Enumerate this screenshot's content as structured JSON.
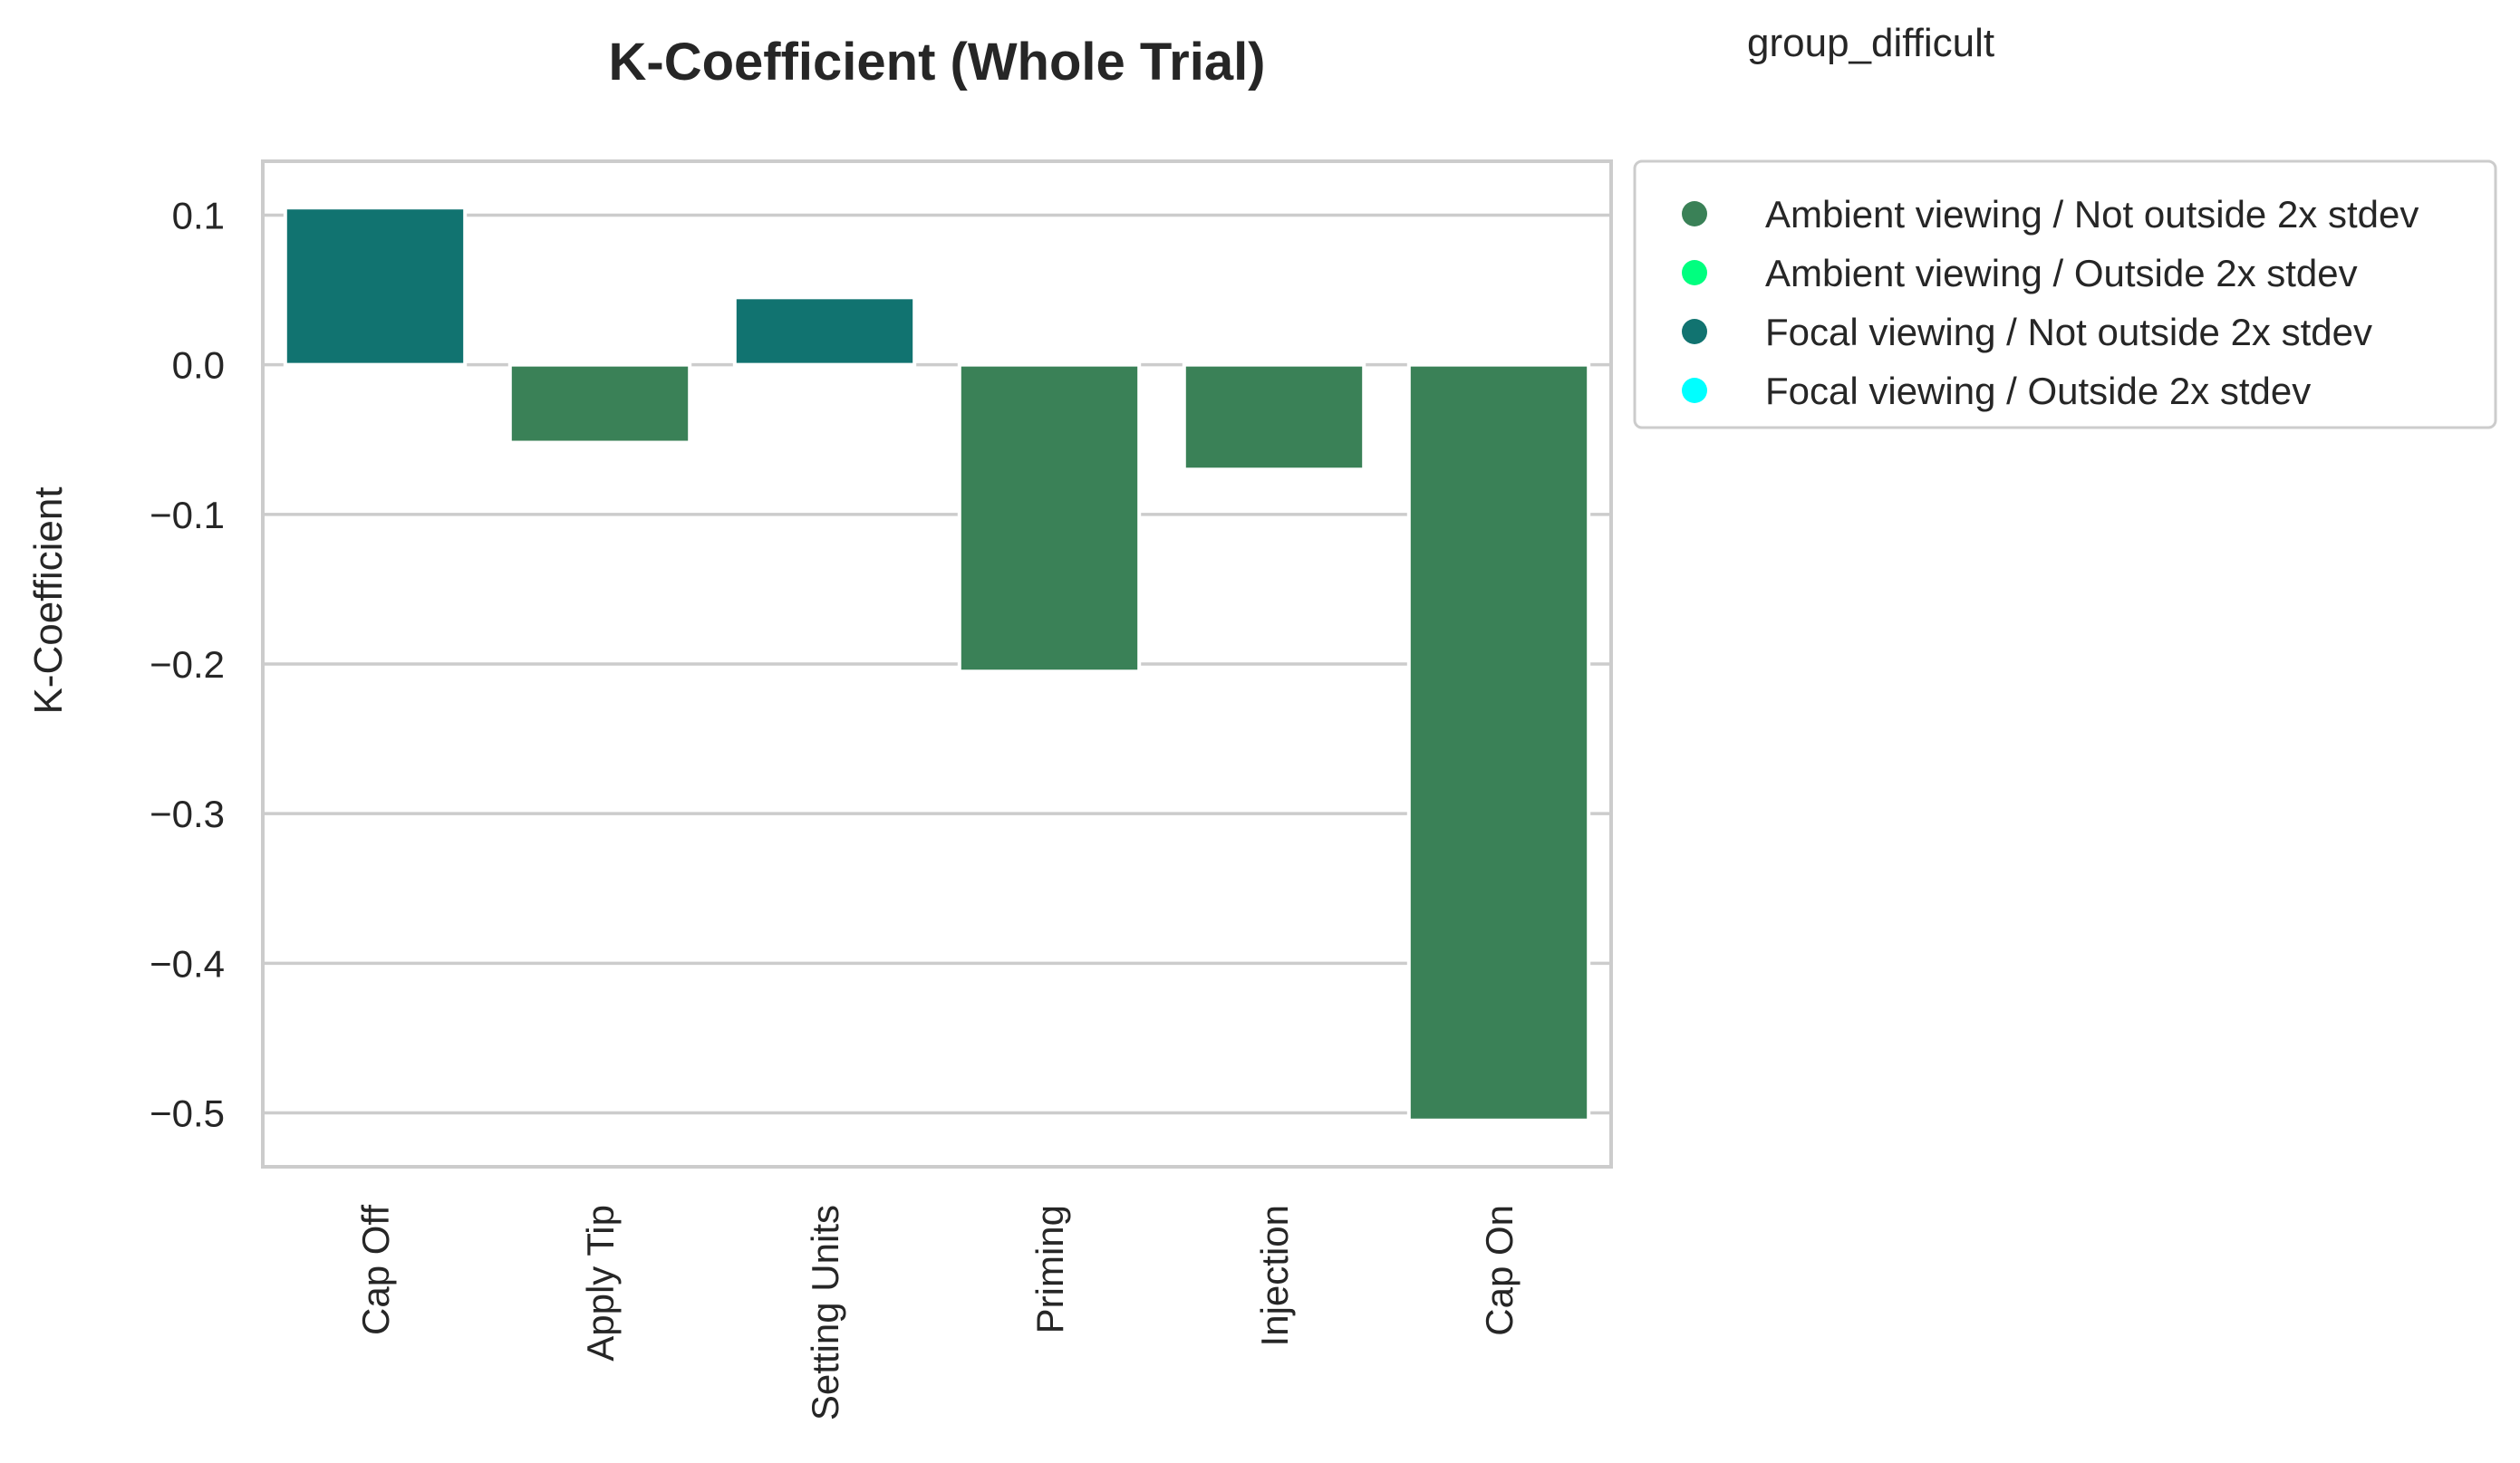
{
  "group_caption": "group_difficult",
  "colors": {
    "ambient_not_outside": "#3a8157",
    "ambient_outside": "#00ff7f",
    "focal_not_outside": "#117370",
    "focal_outside": "#00ffff",
    "grid": "#cccccc",
    "text": "#262626"
  },
  "chart_data": {
    "type": "bar",
    "title": "K-Coefficient (Whole Trial)",
    "xlabel": "",
    "ylabel": "K-Coefficient",
    "categories": [
      "Cap Off",
      "Apply Tip",
      "Setting Units",
      "Priming",
      "Injection",
      "Cap On"
    ],
    "values": [
      0.105,
      -0.052,
      0.045,
      -0.205,
      -0.07,
      -0.505
    ],
    "bar_groups": [
      "Focal viewing / Not outside 2x stdev",
      "Ambient viewing / Not outside 2x stdev",
      "Focal viewing / Not outside 2x stdev",
      "Ambient viewing / Not outside 2x stdev",
      "Ambient viewing / Not outside 2x stdev",
      "Ambient viewing / Not outside 2x stdev"
    ],
    "ylim": [
      -0.536,
      0.136
    ],
    "yticks": [
      0.1,
      0.0,
      -0.1,
      -0.2,
      -0.3,
      -0.4,
      -0.5
    ],
    "ytick_labels": [
      "0.1",
      "0.0",
      "−0.1",
      "−0.2",
      "−0.3",
      "−0.4",
      "−0.5"
    ],
    "grid": true,
    "legend_position": "outside-right",
    "legend": [
      {
        "label": "Ambient viewing / Not outside 2x stdev",
        "color": "#3a8157"
      },
      {
        "label": "Ambient viewing / Outside 2x stdev",
        "color": "#00ff7f"
      },
      {
        "label": "Focal viewing / Not outside 2x stdev",
        "color": "#117370"
      },
      {
        "label": "Focal viewing / Outside 2x stdev",
        "color": "#00ffff"
      }
    ]
  }
}
